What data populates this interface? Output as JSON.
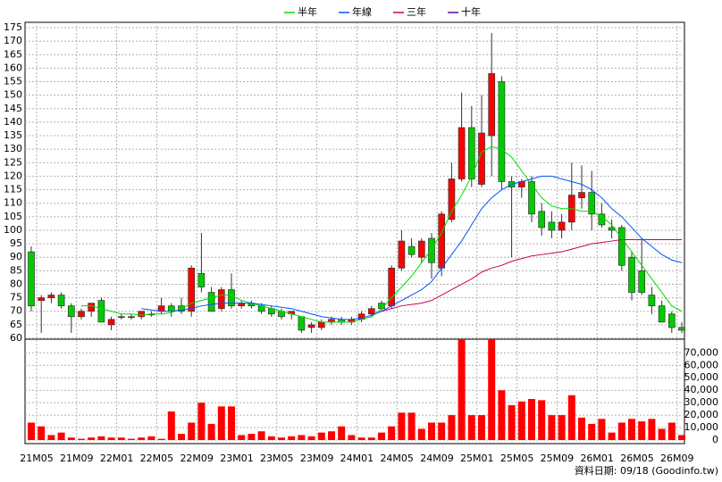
{
  "chart_data": {
    "type": "candlestick",
    "x": [
      "21M05",
      null,
      null,
      null,
      "21M09",
      null,
      null,
      null,
      "22M01",
      null,
      null,
      null,
      "22M05",
      null,
      null,
      null,
      "22M09",
      null,
      null,
      null,
      "23M01",
      null,
      null,
      null,
      "23M05",
      null,
      null,
      null,
      "23M09",
      null,
      null,
      null,
      "24M01",
      null,
      null,
      null,
      "24M05",
      null,
      null,
      null,
      "24M09",
      null,
      null,
      null,
      "25M01",
      null,
      null,
      null,
      "25M05",
      null,
      null,
      null,
      "25M09",
      null,
      null,
      null,
      "26M01",
      null,
      null,
      null,
      "26M05",
      null,
      null,
      null,
      "26M09",
      null
    ],
    "open": [
      92,
      74,
      75,
      76,
      72,
      68,
      70,
      74,
      65,
      68,
      68,
      68,
      69,
      70,
      72,
      72,
      70,
      84,
      77,
      71,
      78,
      72,
      73,
      72,
      71,
      70,
      69,
      68,
      64,
      64,
      66,
      67,
      66,
      67,
      69,
      73,
      72,
      86,
      94,
      90,
      97,
      86,
      104,
      119,
      138,
      117,
      135,
      155,
      118,
      116,
      118,
      107,
      103,
      100,
      103,
      112,
      114,
      106,
      101,
      101,
      90,
      85,
      76,
      72,
      69,
      64
    ],
    "high": [
      94,
      76,
      77,
      77,
      73,
      71,
      73,
      75,
      68,
      69,
      69,
      70,
      70,
      75,
      73,
      75,
      87,
      99,
      79,
      79,
      84,
      74,
      74,
      73,
      72,
      71,
      70,
      68,
      66,
      67,
      68,
      68,
      68,
      70,
      72,
      74,
      87,
      100,
      97,
      97,
      99,
      107,
      125,
      151,
      146,
      150,
      173,
      157,
      120,
      119,
      120,
      110,
      107,
      106,
      125,
      124,
      122,
      110,
      104,
      102,
      92,
      97,
      79,
      74,
      70,
      66
    ],
    "low": [
      70,
      62,
      73,
      71,
      62,
      67,
      68,
      66,
      63,
      67,
      67,
      67,
      68,
      69,
      68,
      69,
      68,
      77,
      70,
      70,
      71,
      71,
      71,
      69,
      68,
      67,
      67,
      62,
      62,
      63,
      65,
      65,
      65,
      66,
      68,
      70,
      71,
      85,
      90,
      88,
      82,
      83,
      103,
      118,
      116,
      116,
      120,
      115,
      90,
      112,
      103,
      98,
      97,
      97,
      100,
      108,
      100,
      101,
      97,
      85,
      74,
      76,
      69,
      66,
      62,
      62
    ],
    "close": [
      72,
      75,
      76,
      72,
      68,
      70,
      73,
      66,
      67,
      68,
      68,
      70,
      69,
      72,
      70,
      70,
      86,
      79,
      70,
      78,
      72,
      73,
      72,
      70,
      69,
      68,
      70,
      63,
      65,
      66,
      67,
      66,
      67,
      69,
      71,
      71,
      86,
      96,
      91,
      96,
      88,
      106,
      119,
      138,
      119,
      136,
      158,
      118,
      116,
      118,
      106,
      101,
      100,
      103,
      113,
      114,
      106,
      102,
      100,
      87,
      77,
      77,
      72,
      66,
      64,
      63
    ],
    "up_color": "#ff0000",
    "down_color": "#00cc00",
    "ylim": [
      60,
      175
    ],
    "yticks": [
      60,
      65,
      70,
      75,
      80,
      85,
      90,
      95,
      100,
      105,
      110,
      115,
      120,
      125,
      130,
      135,
      140,
      145,
      150,
      155,
      160,
      165,
      170,
      175
    ],
    "volume": {
      "color": "#ff0000",
      "values": [
        14000,
        11000,
        4000,
        6000,
        2000,
        1000,
        2000,
        3000,
        2000,
        2000,
        1000,
        2000,
        3000,
        1000,
        23000,
        5000,
        14000,
        30000,
        13000,
        27000,
        27000,
        4000,
        5000,
        7000,
        3000,
        2000,
        3000,
        4000,
        3000,
        6000,
        7000,
        11000,
        4000,
        2000,
        2000,
        6000,
        11000,
        22000,
        22000,
        9000,
        14000,
        14000,
        20000,
        81000,
        20000,
        20000,
        81000,
        40000,
        28000,
        31000,
        33000,
        32000,
        20000,
        20000,
        36000,
        18000,
        13000,
        17000,
        6000,
        14000,
        17000,
        15000,
        17000,
        9000,
        14000,
        4000
      ],
      "ylim": [
        0,
        81000
      ],
      "yticks": [
        0,
        {
          "value": 10000,
          "label": "10,000"
        },
        {
          "value": 20000,
          "label": "20,000"
        },
        {
          "value": 30000,
          "label": "30,000"
        },
        {
          "value": 40000,
          "label": "40,000"
        },
        {
          "value": 50000,
          "label": "50,000"
        },
        {
          "value": 60000,
          "label": "60,000"
        },
        {
          "value": 70000,
          "label": "70,000"
        }
      ]
    },
    "series": [
      {
        "name": "半年",
        "color": "#00dd00",
        "values": [
          null,
          null,
          null,
          null,
          null,
          72,
          72,
          71,
          70,
          69,
          69,
          68.5,
          69,
          69,
          69.5,
          71,
          73,
          74,
          75,
          76,
          76,
          74,
          73,
          72,
          71,
          70,
          69,
          68,
          67,
          66,
          66,
          66,
          66,
          67,
          68,
          71,
          75,
          79,
          83,
          88,
          93,
          99,
          107,
          113,
          120,
          129,
          131,
          130,
          127,
          122,
          117,
          112,
          109,
          108,
          108,
          107,
          107,
          105,
          102,
          97,
          92,
          87,
          82,
          77,
          72,
          70
        ]
      },
      {
        "name": "年線",
        "color": "#0055ff",
        "values": [
          null,
          null,
          null,
          null,
          null,
          null,
          null,
          null,
          null,
          null,
          null,
          71,
          70.5,
          70,
          70,
          70.5,
          71,
          72,
          72.5,
          73,
          73,
          73,
          73,
          72.5,
          72,
          71.5,
          71,
          70,
          69,
          68,
          67.5,
          67,
          67,
          67.5,
          68.5,
          70,
          72,
          74,
          76,
          78,
          81,
          86,
          91,
          96,
          102,
          108,
          112,
          115,
          117,
          118,
          119,
          120,
          120,
          119,
          118,
          117,
          115,
          112,
          108,
          105,
          101,
          97,
          94,
          91,
          89,
          88
        ]
      },
      {
        "name": "三年",
        "color": "#cc0055",
        "values": [
          null,
          null,
          null,
          null,
          null,
          null,
          null,
          null,
          null,
          null,
          null,
          null,
          null,
          null,
          null,
          null,
          null,
          null,
          null,
          null,
          null,
          null,
          null,
          null,
          null,
          null,
          null,
          null,
          null,
          null,
          null,
          null,
          null,
          null,
          null,
          70,
          71,
          72,
          72.5,
          73,
          74,
          76,
          78,
          80,
          82,
          84.5,
          86,
          87,
          88.5,
          89.5,
          90.5,
          91,
          91.5,
          92,
          93,
          94,
          95,
          95.5,
          96,
          96.5,
          96.5,
          96.5,
          96.5,
          96.5,
          96.5,
          96.5
        ]
      },
      {
        "name": "十年",
        "color": "#6600aa",
        "values": [
          null,
          null,
          null,
          null,
          null,
          null,
          null,
          null,
          null,
          null,
          null,
          null,
          null,
          null,
          null,
          null,
          null,
          null,
          null,
          null,
          null,
          null,
          null,
          null,
          null,
          null,
          null,
          null,
          null,
          null,
          null,
          null,
          null,
          null,
          null,
          null,
          null,
          null,
          null,
          null,
          null,
          null,
          null,
          null,
          null,
          null,
          null,
          null,
          null,
          null,
          null,
          null,
          null,
          null,
          null,
          null,
          null,
          null,
          null,
          null,
          null,
          null,
          null,
          null,
          null,
          null
        ]
      }
    ],
    "grid": true,
    "legend": "top",
    "footnote": "資料日期: 09/18  (Goodinfo.tw)"
  }
}
